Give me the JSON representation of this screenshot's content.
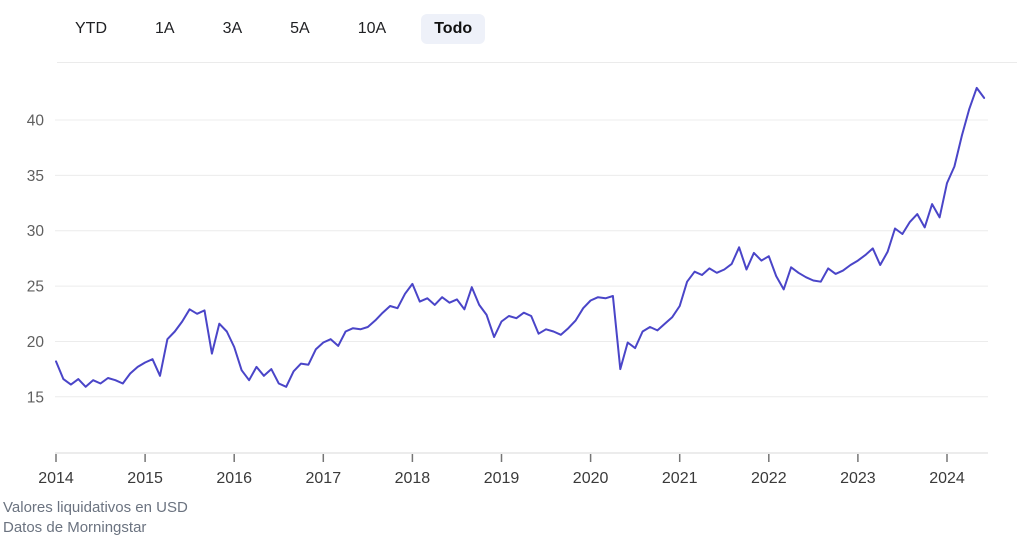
{
  "range_bar": {
    "buttons": [
      {
        "id": "ytd",
        "label": "YTD",
        "active": false
      },
      {
        "id": "1a",
        "label": "1A",
        "active": false
      },
      {
        "id": "3a",
        "label": "3A",
        "active": false
      },
      {
        "id": "5a",
        "label": "5A",
        "active": false
      },
      {
        "id": "10a",
        "label": "10A",
        "active": false
      },
      {
        "id": "todo",
        "label": "Todo",
        "active": true
      }
    ]
  },
  "footer": {
    "line1": "Valores liquidativos en USD",
    "line2": "Datos de Morningstar"
  },
  "chart_data": {
    "type": "line",
    "series_name": "Valor liquidativo (USD)",
    "x_start_year": 2014,
    "points_per_year": 12,
    "x_tick_labels": [
      "2014",
      "2015",
      "2016",
      "2017",
      "2018",
      "2019",
      "2020",
      "2021",
      "2022",
      "2023",
      "2024"
    ],
    "y_ticks": [
      15,
      20,
      25,
      30,
      35,
      40
    ],
    "y_tick_labels": [
      "15",
      "20",
      "25",
      "30",
      "35",
      "40"
    ],
    "ylim": [
      10,
      44
    ],
    "grid": "horizontal",
    "legend": "none",
    "line_color": "#4a45c8",
    "gridline_color": "#ececec",
    "axis_line_color": "#d9d9d9",
    "tick_color": "#757575",
    "y_label_color": "#5f5f5f",
    "x_label_color": "#3a3a3a",
    "values": [
      18.2,
      16.6,
      16.1,
      16.6,
      15.9,
      16.5,
      16.2,
      16.7,
      16.5,
      16.2,
      17.1,
      17.7,
      18.1,
      18.4,
      16.9,
      20.2,
      20.9,
      21.8,
      22.9,
      22.5,
      22.8,
      18.9,
      21.6,
      20.9,
      19.5,
      17.4,
      16.5,
      17.7,
      16.9,
      17.5,
      16.2,
      15.9,
      17.3,
      18.0,
      17.9,
      19.3,
      19.9,
      20.2,
      19.6,
      20.9,
      21.2,
      21.1,
      21.3,
      21.9,
      22.6,
      23.2,
      23.0,
      24.3,
      25.2,
      23.6,
      23.9,
      23.3,
      24.0,
      23.5,
      23.8,
      22.9,
      24.9,
      23.3,
      22.4,
      20.4,
      21.8,
      22.3,
      22.1,
      22.6,
      22.3,
      20.7,
      21.1,
      20.9,
      20.6,
      21.2,
      21.9,
      23.0,
      23.7,
      24.0,
      23.9,
      24.1,
      17.5,
      19.9,
      19.4,
      20.9,
      21.3,
      21.0,
      21.6,
      22.2,
      23.2,
      25.4,
      26.3,
      26.0,
      26.6,
      26.2,
      26.5,
      27.0,
      28.5,
      26.5,
      28.0,
      27.3,
      27.7,
      25.9,
      24.7,
      26.7,
      26.2,
      25.8,
      25.5,
      25.4,
      26.6,
      26.1,
      26.4,
      26.9,
      27.3,
      27.8,
      28.4,
      26.9,
      28.1,
      30.2,
      29.7,
      30.8,
      31.5,
      30.3,
      32.4,
      31.2,
      34.3,
      35.8,
      38.6,
      41.0,
      42.9,
      42.0
    ]
  }
}
